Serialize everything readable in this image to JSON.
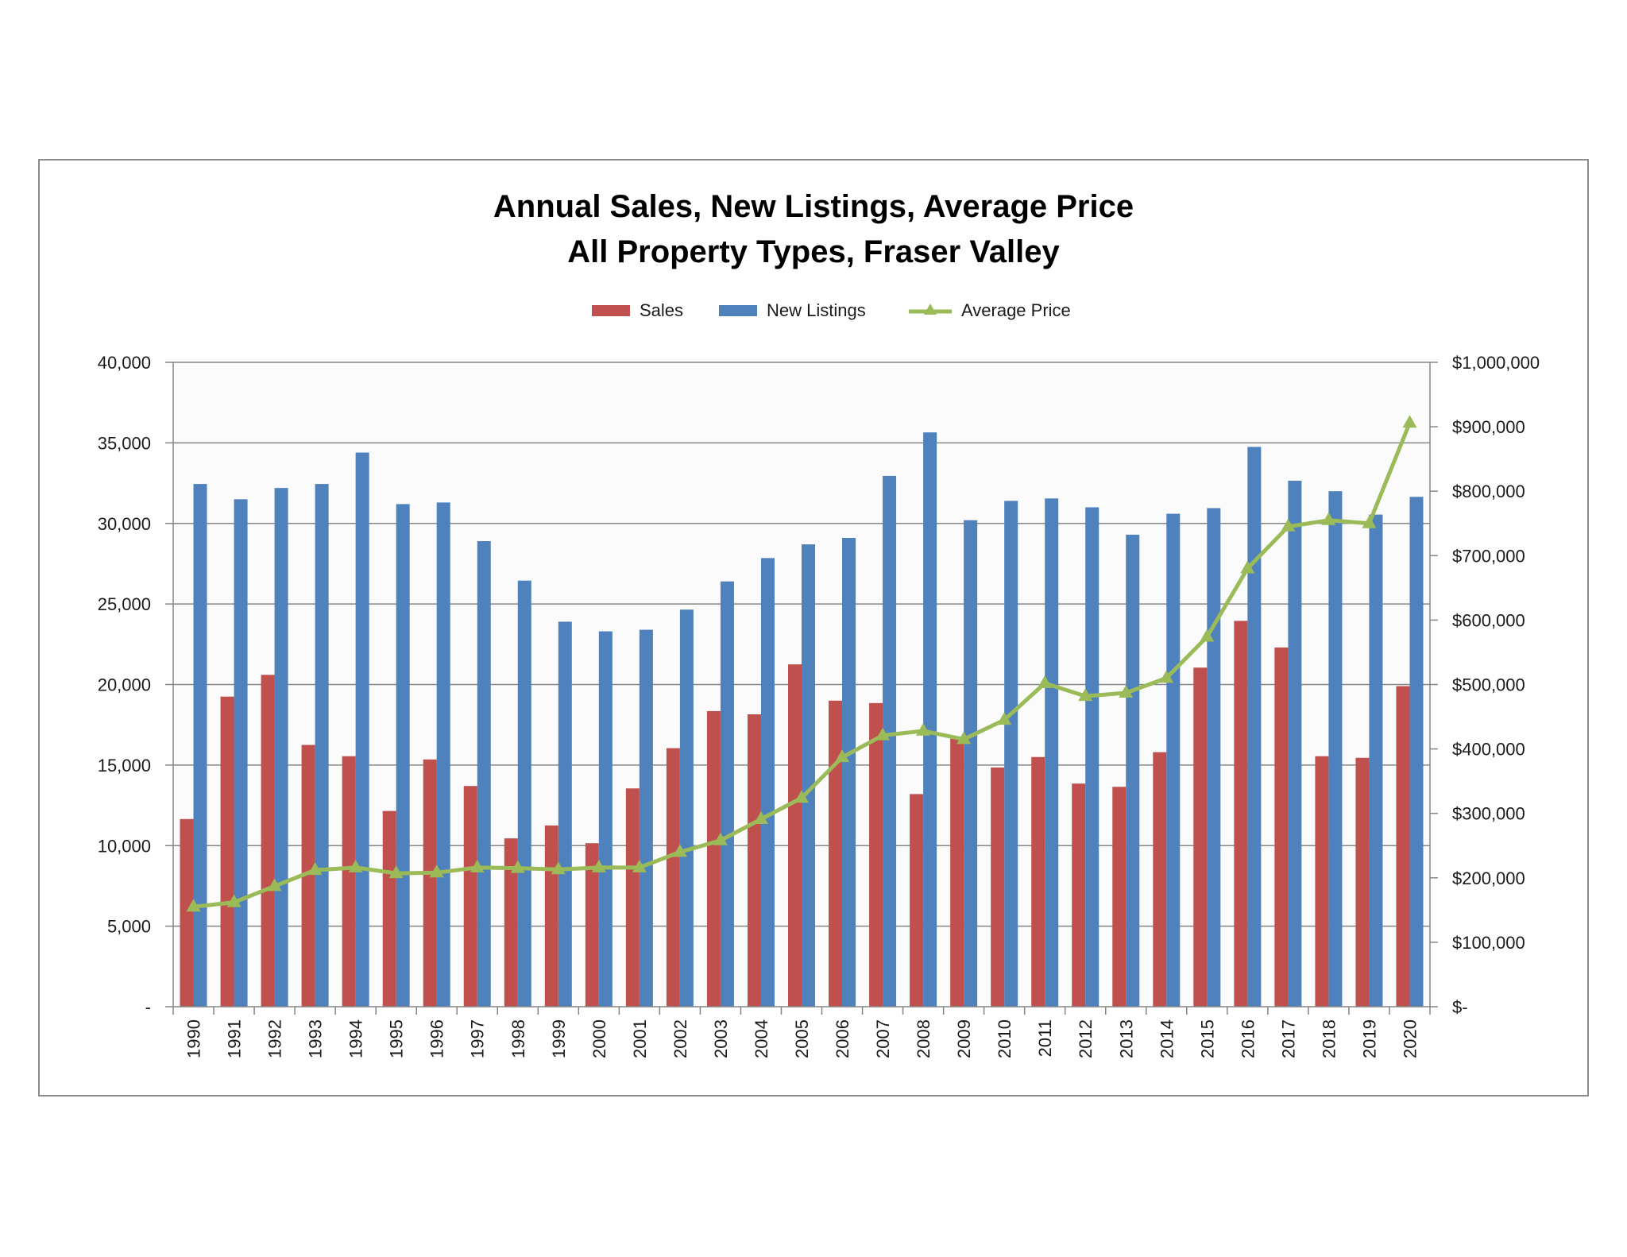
{
  "chart_data": {
    "type": "bar",
    "title_lines": [
      "Annual Sales, New Listings, Average Price",
      "All Property Types, Fraser Valley"
    ],
    "categories": [
      "1990",
      "1991",
      "1992",
      "1993",
      "1994",
      "1995",
      "1996",
      "1997",
      "1998",
      "1999",
      "2000",
      "2001",
      "2002",
      "2003",
      "2004",
      "2005",
      "2006",
      "2007",
      "2008",
      "2009",
      "2010",
      "2011",
      "2012",
      "2013",
      "2014",
      "2015",
      "2016",
      "2017",
      "2018",
      "2019",
      "2020"
    ],
    "series": [
      {
        "name": "Sales",
        "type": "bar",
        "axis": "left",
        "color": "#c0504d",
        "values": [
          11650,
          19250,
          20600,
          16250,
          15550,
          12150,
          15350,
          13700,
          10450,
          11250,
          10150,
          13550,
          16050,
          18350,
          18150,
          21250,
          19000,
          18850,
          13200,
          16650,
          14850,
          15500,
          13850,
          13650,
          15800,
          21050,
          23950,
          22300,
          15550,
          15450,
          19900
        ]
      },
      {
        "name": "New Listings",
        "type": "bar",
        "axis": "left",
        "color": "#4f81bd",
        "values": [
          32450,
          31500,
          32200,
          32450,
          34400,
          31200,
          31300,
          28900,
          26450,
          23900,
          23300,
          23400,
          24650,
          26400,
          27850,
          28700,
          29100,
          32950,
          35650,
          30200,
          31400,
          31550,
          31000,
          29300,
          30600,
          30950,
          34750,
          32650,
          32000,
          30550,
          31650
        ]
      },
      {
        "name": "Average Price",
        "type": "line",
        "axis": "right",
        "color": "#9bbb59",
        "values": [
          155000,
          162000,
          187000,
          212000,
          216000,
          207000,
          208000,
          216000,
          215000,
          213000,
          216000,
          216000,
          240000,
          258000,
          291000,
          324000,
          387000,
          421000,
          428000,
          415000,
          445000,
          502000,
          482000,
          487000,
          510000,
          574000,
          680000,
          745000,
          755000,
          750000,
          906000
        ]
      }
    ],
    "y_left": {
      "min": 0,
      "max": 40000,
      "ticks": [
        0,
        5000,
        10000,
        15000,
        20000,
        25000,
        30000,
        35000,
        40000
      ],
      "tick_labels": [
        "-",
        "5,000",
        "10,000",
        "15,000",
        "20,000",
        "25,000",
        "30,000",
        "35,000",
        "40,000"
      ]
    },
    "y_right": {
      "min": 0,
      "max": 1000000,
      "ticks": [
        0,
        100000,
        200000,
        300000,
        400000,
        500000,
        600000,
        700000,
        800000,
        900000,
        1000000
      ],
      "tick_labels": [
        "$-",
        "$100,000",
        "$200,000",
        "$300,000",
        "$400,000",
        "$500,000",
        "$600,000",
        "$700,000",
        "$800,000",
        "$900,000",
        "$1,000,000"
      ]
    },
    "grid": true,
    "legend_position": "top-center"
  }
}
